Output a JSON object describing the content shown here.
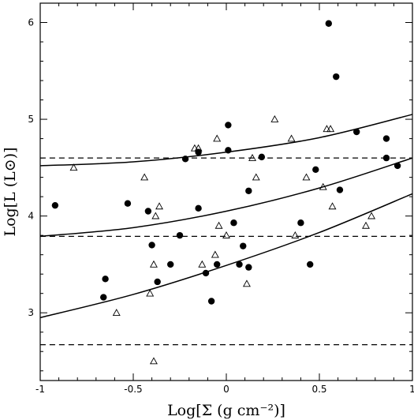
{
  "chart_data": {
    "type": "scatter",
    "xlabel": "Log[Σ (g cm⁻²)]",
    "ylabel": "Log[L (L⊙)]",
    "xlim": [
      -1,
      1
    ],
    "ylim": [
      2.3,
      6.2
    ],
    "x_ticks": [
      -1,
      -0.5,
      0,
      0.5,
      1
    ],
    "x_tick_labels": [
      "-1",
      "-0.5",
      "0",
      "0.5",
      "1"
    ],
    "y_ticks": [
      3,
      4,
      5,
      6
    ],
    "y_tick_labels": [
      "3",
      "4",
      "5",
      "6"
    ],
    "grid": false,
    "series": [
      {
        "marker": "filled-circle",
        "color": "#000000",
        "points": [
          [
            -0.92,
            4.11
          ],
          [
            -0.65,
            3.35
          ],
          [
            -0.66,
            3.16
          ],
          [
            -0.53,
            4.13
          ],
          [
            -0.42,
            4.05
          ],
          [
            -0.4,
            3.7
          ],
          [
            -0.37,
            3.32
          ],
          [
            -0.3,
            3.5
          ],
          [
            -0.25,
            3.8
          ],
          [
            -0.22,
            4.59
          ],
          [
            -0.15,
            4.66
          ],
          [
            -0.15,
            4.08
          ],
          [
            -0.11,
            3.41
          ],
          [
            -0.08,
            3.12
          ],
          [
            -0.05,
            3.5
          ],
          [
            0.01,
            4.94
          ],
          [
            0.01,
            4.68
          ],
          [
            0.04,
            3.93
          ],
          [
            0.07,
            3.5
          ],
          [
            0.09,
            3.69
          ],
          [
            0.12,
            4.26
          ],
          [
            0.12,
            3.47
          ],
          [
            0.19,
            4.61
          ],
          [
            0.4,
            3.93
          ],
          [
            0.45,
            3.5
          ],
          [
            0.48,
            4.48
          ],
          [
            0.55,
            5.99
          ],
          [
            0.59,
            5.44
          ],
          [
            0.61,
            4.27
          ],
          [
            0.7,
            4.87
          ],
          [
            0.86,
            4.8
          ],
          [
            0.86,
            4.6
          ],
          [
            0.92,
            4.52
          ]
        ]
      },
      {
        "marker": "open-triangle",
        "color": "#000000",
        "points": [
          [
            -0.82,
            4.5
          ],
          [
            -0.59,
            3.0
          ],
          [
            -0.44,
            4.4
          ],
          [
            -0.41,
            3.2
          ],
          [
            -0.39,
            3.5
          ],
          [
            -0.38,
            4.0
          ],
          [
            -0.36,
            4.1
          ],
          [
            -0.39,
            2.5
          ],
          [
            -0.17,
            4.7
          ],
          [
            -0.15,
            4.7
          ],
          [
            -0.13,
            3.5
          ],
          [
            -0.06,
            3.6
          ],
          [
            -0.05,
            4.8
          ],
          [
            -0.04,
            3.9
          ],
          [
            0.0,
            3.8
          ],
          [
            0.11,
            3.3
          ],
          [
            0.14,
            4.6
          ],
          [
            0.16,
            4.4
          ],
          [
            0.26,
            5.0
          ],
          [
            0.35,
            4.8
          ],
          [
            0.37,
            3.8
          ],
          [
            0.43,
            4.4
          ],
          [
            0.52,
            4.3
          ],
          [
            0.54,
            4.9
          ],
          [
            0.56,
            4.9
          ],
          [
            0.57,
            4.1
          ],
          [
            0.75,
            3.9
          ],
          [
            0.78,
            4.0
          ]
        ]
      }
    ],
    "curves": [
      {
        "style": "solid",
        "points": [
          [
            -1,
            4.52
          ],
          [
            -0.5,
            4.56
          ],
          [
            0,
            4.66
          ],
          [
            0.5,
            4.81
          ],
          [
            1,
            5.05
          ]
        ]
      },
      {
        "style": "solid",
        "points": [
          [
            -1,
            3.79
          ],
          [
            -0.5,
            3.88
          ],
          [
            0,
            4.05
          ],
          [
            0.5,
            4.29
          ],
          [
            1,
            4.6
          ]
        ]
      },
      {
        "style": "solid",
        "points": [
          [
            -1,
            2.95
          ],
          [
            -0.5,
            3.19
          ],
          [
            0,
            3.49
          ],
          [
            0.5,
            3.83
          ],
          [
            1,
            4.23
          ]
        ]
      },
      {
        "style": "dashed",
        "points": [
          [
            -1,
            4.6
          ],
          [
            1,
            4.6
          ]
        ]
      },
      {
        "style": "dashed",
        "points": [
          [
            -1,
            3.79
          ],
          [
            1,
            3.79
          ]
        ]
      },
      {
        "style": "dashed",
        "points": [
          [
            -1,
            2.67
          ],
          [
            1,
            2.67
          ]
        ]
      }
    ]
  }
}
